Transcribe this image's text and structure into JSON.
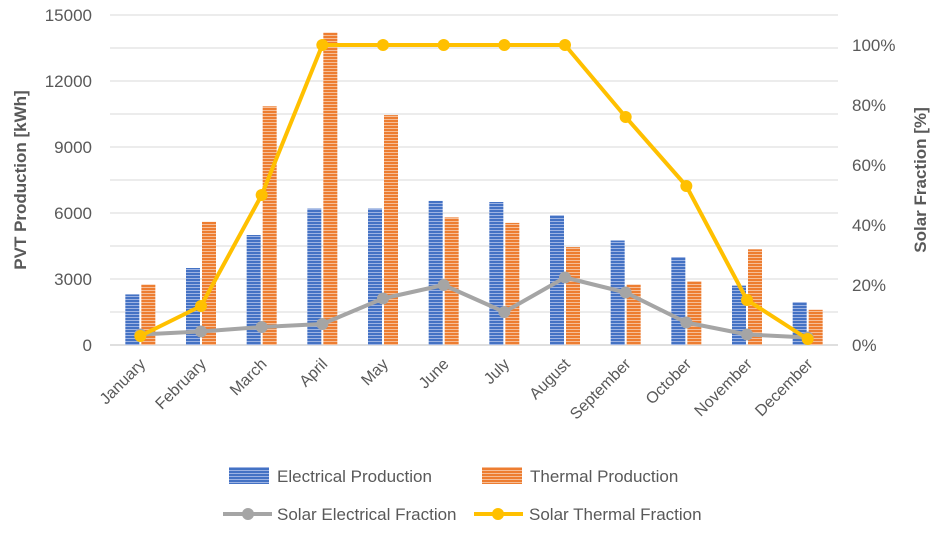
{
  "chart_data": {
    "type": "bar",
    "categories": [
      "January",
      "February",
      "March",
      "April",
      "May",
      "June",
      "July",
      "August",
      "September",
      "October",
      "November",
      "December"
    ],
    "bar_series": [
      {
        "name": "Electrical Production",
        "color": "#4472C4",
        "values": [
          2300,
          3500,
          5000,
          6200,
          6200,
          6550,
          6500,
          5900,
          4750,
          4000,
          2700,
          1950
        ]
      },
      {
        "name": "Thermal Production",
        "color": "#ED7D31",
        "values": [
          2750,
          5600,
          10850,
          14200,
          10450,
          5800,
          5550,
          4450,
          2750,
          2900,
          4350,
          1600
        ]
      }
    ],
    "line_series": [
      {
        "name": "Solar Electrical Fraction",
        "color": "#A5A5A5",
        "values": [
          3.5,
          4.5,
          6,
          7,
          15.5,
          20,
          11,
          22.5,
          17.5,
          7.5,
          3.5,
          2.5
        ]
      },
      {
        "name": "Solar Thermal Fraction",
        "color": "#FFC000",
        "values": [
          3,
          13,
          50,
          100,
          100,
          100,
          100,
          100,
          76,
          53,
          15,
          2
        ]
      }
    ],
    "ylabel": "PVT Production [kWh]",
    "y2label": "Solar Fraction [%]",
    "ylim": [
      0,
      15000
    ],
    "y2lim": [
      0,
      110
    ],
    "yticks": [
      "0",
      "3000",
      "6000",
      "9000",
      "12000",
      "15000"
    ],
    "y2ticks": [
      "0%",
      "20%",
      "40%",
      "60%",
      "80%",
      "100%"
    ],
    "grid": true,
    "legend_position": "bottom"
  }
}
